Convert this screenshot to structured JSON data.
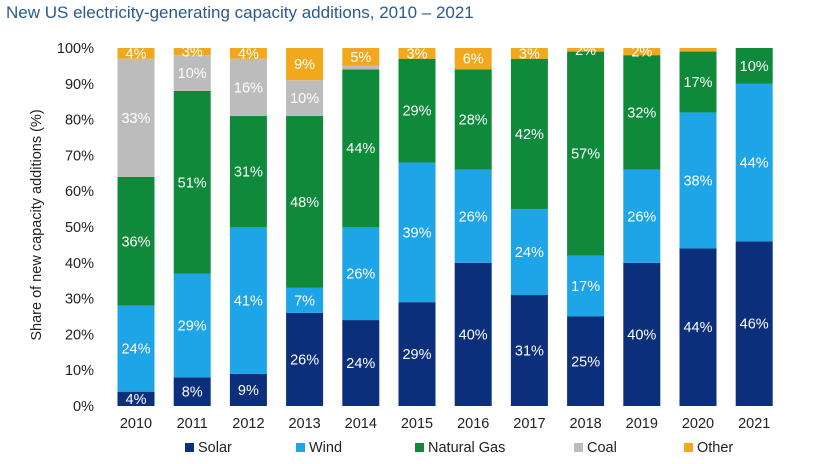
{
  "chart_data": {
    "type": "bar",
    "stacked": true,
    "title": "New US electricity-generating capacity additions, 2010 – 2021",
    "xlabel": "",
    "ylabel": "Share of new capacity additions (%)",
    "ylim": [
      0,
      100
    ],
    "yticks": [
      "0%",
      "10%",
      "20%",
      "30%",
      "40%",
      "50%",
      "60%",
      "70%",
      "80%",
      "90%",
      "100%"
    ],
    "categories": [
      "2010",
      "2011",
      "2012",
      "2013",
      "2014",
      "2015",
      "2016",
      "2017",
      "2018",
      "2019",
      "2020",
      "2021"
    ],
    "legend_position": "bottom",
    "grid": false,
    "series": [
      {
        "name": "Solar",
        "color": "#0b2f7a",
        "values": [
          4,
          8,
          9,
          26,
          24,
          29,
          40,
          31,
          25,
          40,
          44,
          46
        ],
        "labels": [
          "4%",
          "8%",
          "9%",
          "26%",
          "24%",
          "29%",
          "40%",
          "31%",
          "25%",
          "40%",
          "44%",
          "46%"
        ]
      },
      {
        "name": "Wind",
        "color": "#1ea5e8",
        "values": [
          24,
          29,
          41,
          7,
          26,
          39,
          26,
          24,
          17,
          26,
          38,
          44
        ],
        "labels": [
          "24%",
          "29%",
          "41%",
          "7%",
          "26%",
          "39%",
          "26%",
          "24%",
          "17%",
          "26%",
          "38%",
          "44%"
        ]
      },
      {
        "name": "Natural Gas",
        "color": "#0e8a3a",
        "values": [
          36,
          51,
          31,
          48,
          44,
          29,
          28,
          42,
          57,
          32,
          17,
          10
        ],
        "labels": [
          "36%",
          "51%",
          "31%",
          "48%",
          "44%",
          "29%",
          "28%",
          "42%",
          "57%",
          "32%",
          "17%",
          "10%"
        ]
      },
      {
        "name": "Coal",
        "color": "#bcbcbc",
        "values": [
          33,
          10,
          16,
          10,
          1,
          0,
          0,
          0,
          0,
          0,
          0,
          0
        ],
        "labels": [
          "33%",
          "10%",
          "16%",
          "10%",
          "",
          "",
          "",
          "",
          "",
          "",
          "",
          ""
        ]
      },
      {
        "name": "Other",
        "color": "#f2a81d",
        "values": [
          4,
          3,
          4,
          9,
          5,
          3,
          6,
          3,
          2,
          2,
          1,
          0
        ],
        "labels": [
          "4%",
          "3%",
          "4%",
          "9%",
          "5%",
          "3%",
          "6%",
          "3%",
          "2%",
          "2%",
          "",
          ""
        ]
      }
    ]
  }
}
